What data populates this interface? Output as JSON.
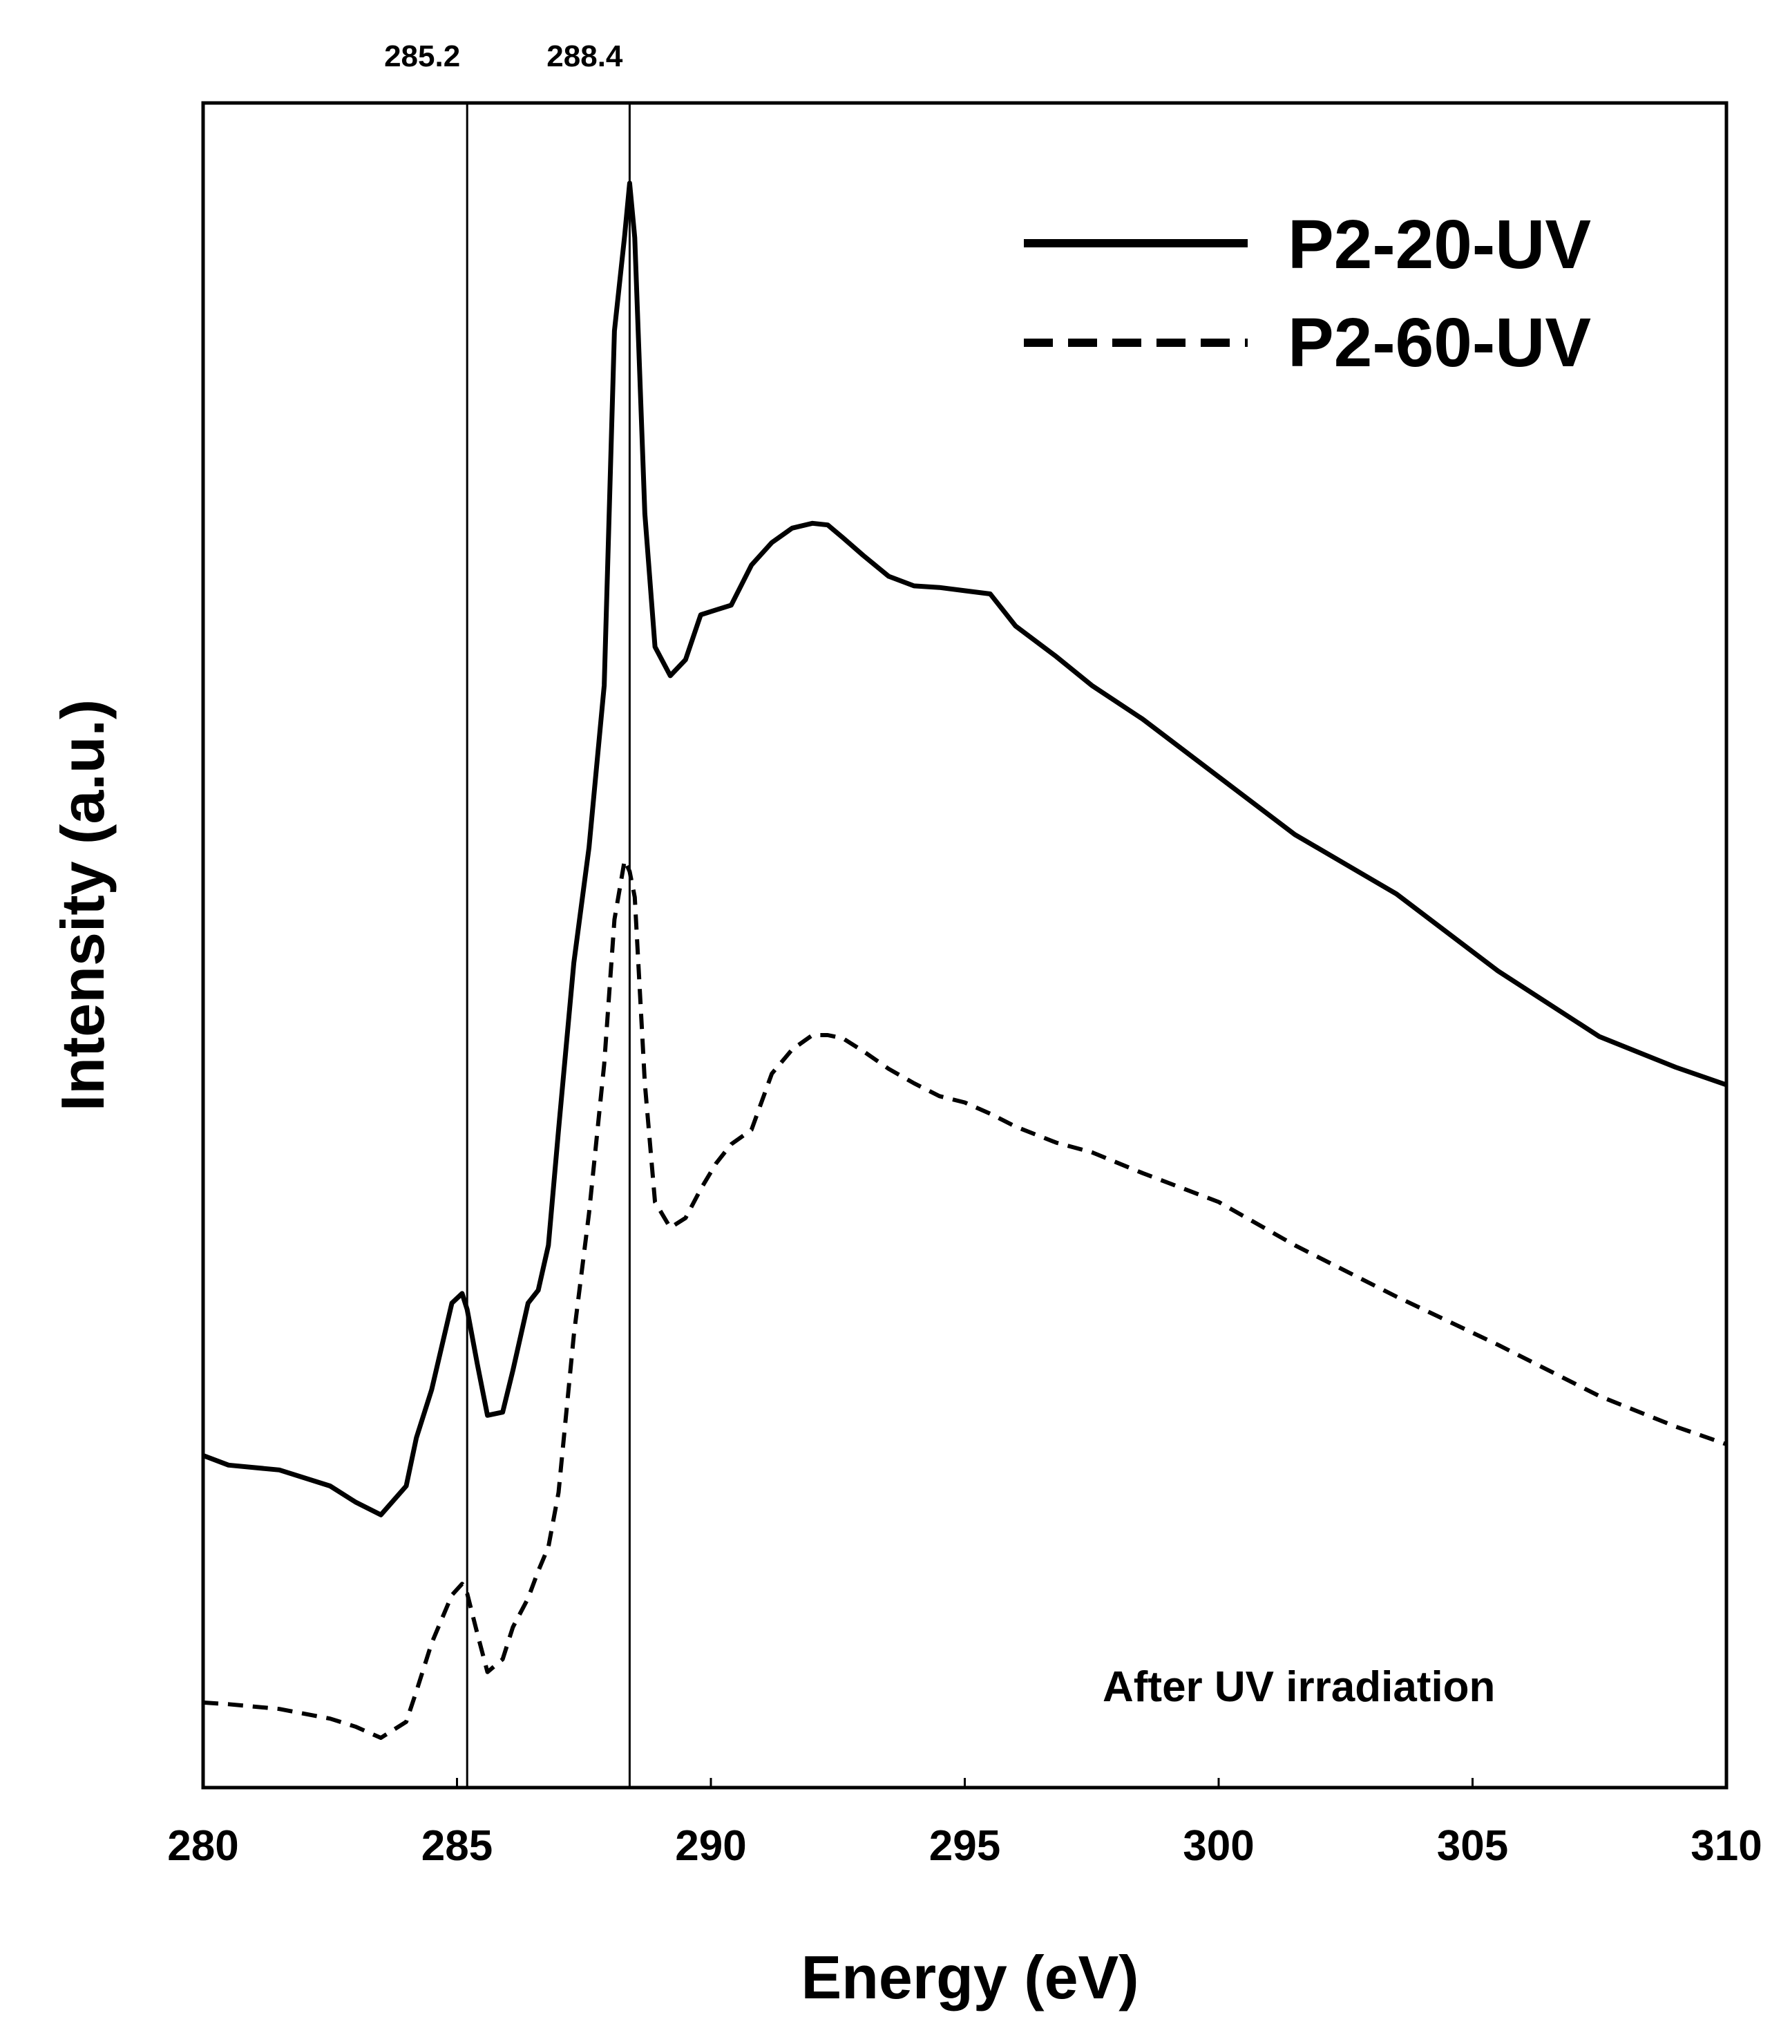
{
  "chart_data": {
    "type": "line",
    "xlabel": "Energy (eV)",
    "ylabel": "Intensity (a.u.)",
    "xlim": [
      280,
      310
    ],
    "ylim": [
      0,
      1.05
    ],
    "x_ticks": [
      "280",
      "285",
      "290",
      "295",
      "300",
      "305",
      "310"
    ],
    "x_tick_values": [
      280,
      285,
      290,
      295,
      300,
      305,
      310
    ],
    "y_ticks": [],
    "grid": false,
    "legend_position": "top-right",
    "annotation": "After UV irradiation",
    "reference_lines": [
      {
        "x": 285.2,
        "label": "285.2"
      },
      {
        "x": 288.4,
        "label": "288.4"
      }
    ],
    "series": [
      {
        "name": "P2-20-UV",
        "style": "solid",
        "x": [
          280,
          280.5,
          281.5,
          282.5,
          283,
          283.5,
          284,
          284.2,
          284.5,
          284.9,
          285.1,
          285.2,
          285.4,
          285.6,
          285.9,
          286.1,
          286.4,
          286.6,
          286.8,
          287,
          287.3,
          287.6,
          287.9,
          288.1,
          288.3,
          288.4,
          288.5,
          288.7,
          288.9,
          289.2,
          289.5,
          289.8,
          290.1,
          290.4,
          290.8,
          291.2,
          291.6,
          292,
          292.3,
          292.6,
          293,
          293.5,
          294,
          294.5,
          295,
          295.5,
          296,
          296.8,
          297.5,
          298.5,
          300,
          301.5,
          303.5,
          305.5,
          307.5,
          309,
          310
        ],
        "values": [
          0.207,
          0.201,
          0.198,
          0.188,
          0.178,
          0.17,
          0.188,
          0.218,
          0.248,
          0.302,
          0.308,
          0.298,
          0.264,
          0.232,
          0.234,
          0.26,
          0.302,
          0.31,
          0.338,
          0.41,
          0.514,
          0.586,
          0.687,
          0.908,
          0.967,
          1.0,
          0.966,
          0.794,
          0.711,
          0.693,
          0.703,
          0.731,
          0.734,
          0.737,
          0.762,
          0.776,
          0.785,
          0.788,
          0.787,
          0.779,
          0.768,
          0.755,
          0.749,
          0.748,
          0.746,
          0.744,
          0.724,
          0.705,
          0.687,
          0.666,
          0.63,
          0.594,
          0.557,
          0.509,
          0.468,
          0.449,
          0.438
        ]
      },
      {
        "name": "P2-60-UV",
        "style": "dashed",
        "x": [
          280,
          280.5,
          281.5,
          282.5,
          283,
          283.5,
          284,
          284.2,
          284.5,
          284.9,
          285.1,
          285.2,
          285.4,
          285.6,
          285.9,
          286.1,
          286.4,
          286.6,
          286.8,
          287,
          287.3,
          287.6,
          287.9,
          288.1,
          288.3,
          288.4,
          288.5,
          288.7,
          288.9,
          289.2,
          289.5,
          289.8,
          290.1,
          290.4,
          290.8,
          291.2,
          291.6,
          292,
          292.3,
          292.6,
          293,
          293.5,
          294,
          294.5,
          295,
          295.5,
          296,
          296.8,
          297.5,
          298.5,
          300,
          301.5,
          303.5,
          305.5,
          307.5,
          309,
          310
        ],
        "values": [
          0.053,
          0.052,
          0.049,
          0.043,
          0.038,
          0.031,
          0.041,
          0.06,
          0.09,
          0.12,
          0.127,
          0.121,
          0.096,
          0.072,
          0.08,
          0.1,
          0.118,
          0.135,
          0.15,
          0.184,
          0.282,
          0.358,
          0.451,
          0.541,
          0.578,
          0.571,
          0.555,
          0.439,
          0.365,
          0.349,
          0.355,
          0.373,
          0.389,
          0.401,
          0.41,
          0.445,
          0.46,
          0.469,
          0.469,
          0.467,
          0.459,
          0.448,
          0.439,
          0.431,
          0.427,
          0.42,
          0.412,
          0.402,
          0.396,
          0.383,
          0.365,
          0.338,
          0.306,
          0.276,
          0.244,
          0.225,
          0.214
        ]
      }
    ]
  }
}
